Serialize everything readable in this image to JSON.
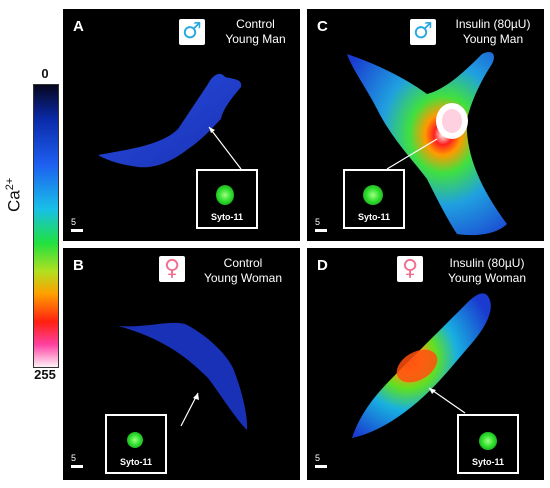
{
  "colorbar": {
    "top_value": "0",
    "bottom_value": "255",
    "label": "Ca",
    "label_superscript": "2+"
  },
  "panels": [
    {
      "letter": "A",
      "sex": "male",
      "symbol": "♂",
      "title_line1": "Control",
      "title_line2": "Young Man",
      "inset_label": "Syto-11",
      "scale_label": "5"
    },
    {
      "letter": "C",
      "sex": "male",
      "symbol": "♂",
      "title_line1": "Insulin (80µU)",
      "title_line2": "Young Man",
      "inset_label": "Syto-11",
      "scale_label": "5"
    },
    {
      "letter": "B",
      "sex": "female",
      "symbol": "♀",
      "title_line1": "Control",
      "title_line2": "Young Woman",
      "inset_label": "Syto-11",
      "scale_label": "5"
    },
    {
      "letter": "D",
      "sex": "female",
      "symbol": "♀",
      "title_line1": "Insulin (80µU)",
      "title_line2": "Young Woman",
      "inset_label": "Syto-11",
      "scale_label": "5"
    }
  ],
  "colors": {
    "background": "#000000",
    "male_symbol": "#2aa8e0",
    "female_symbol": "#f07090",
    "cell_low": "#1a3ad0"
  }
}
